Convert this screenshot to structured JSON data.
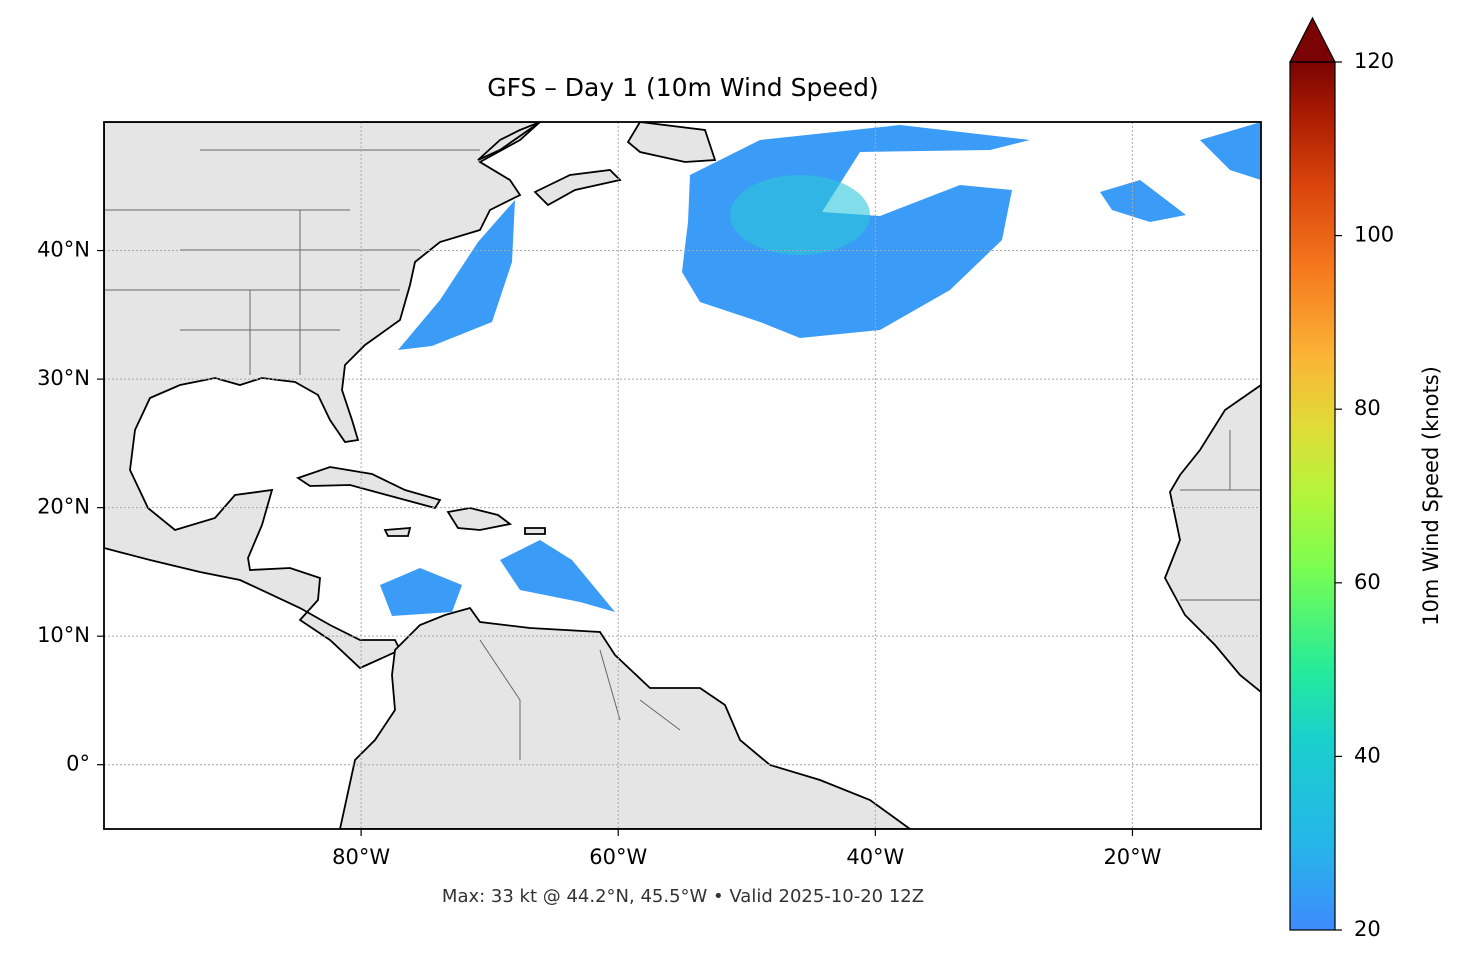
{
  "chart_data": {
    "type": "map",
    "title": "GFS – Day 1 (10m Wind Speed)",
    "annotation": "Max: 33 kt @ 44.2°N, 45.5°W • Valid 2025-10-20 12Z",
    "xlim": [
      -100,
      -10
    ],
    "ylim": [
      -5,
      50
    ],
    "xticks": [
      {
        "value": -80,
        "label": "80°W"
      },
      {
        "value": -60,
        "label": "60°W"
      },
      {
        "value": -40,
        "label": "40°W"
      },
      {
        "value": -20,
        "label": "20°W"
      }
    ],
    "yticks": [
      {
        "value": 0,
        "label": "0°"
      },
      {
        "value": 10,
        "label": "10°N"
      },
      {
        "value": 20,
        "label": "20°N"
      },
      {
        "value": 30,
        "label": "30°N"
      },
      {
        "value": 40,
        "label": "40°N"
      }
    ],
    "grid": true,
    "colorbar": {
      "label": "10m Wind Speed (knots)",
      "lim": [
        20,
        120
      ],
      "ticks": [
        20,
        40,
        60,
        80,
        100,
        120
      ],
      "extend": "max"
    }
  }
}
